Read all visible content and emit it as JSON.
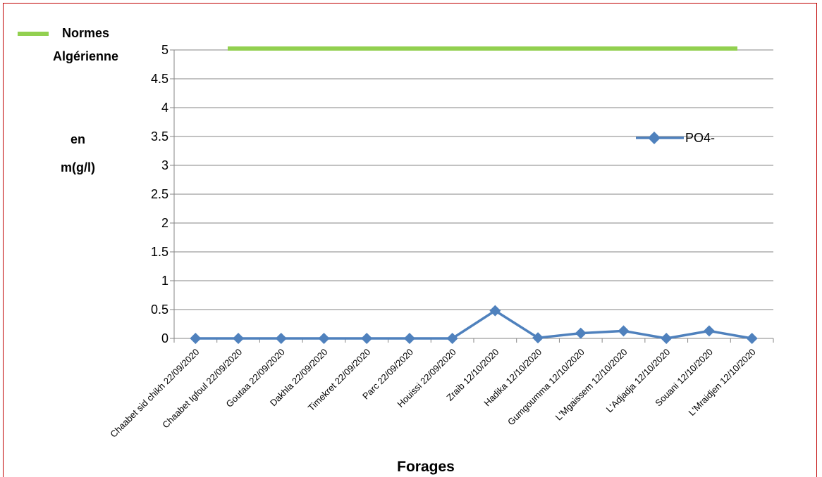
{
  "colors": {
    "series": "#4f81bd",
    "norm": "#92d050",
    "frame": "#c00000",
    "grid": "#868686"
  },
  "chart_data": {
    "type": "line",
    "xlabel": "Forages",
    "ylabel_lines": [
      "en",
      "m(g/l)"
    ],
    "ylim": [
      0,
      5
    ],
    "yticks": [
      "0",
      "0.5",
      "1",
      "1.5",
      "2",
      "2.5",
      "3",
      "3.5",
      "4",
      "4.5",
      "5"
    ],
    "grid": true,
    "legend_position": "right",
    "norm": {
      "label_lines": [
        "Normes",
        "Algérienne"
      ],
      "value": 5
    },
    "categories": [
      "Chaabet sid chikh  22/09/2020",
      "Chaabet Igfoul  22/09/2020",
      "Goutaa 22/09/2020",
      "Dakhla 22/09/2020",
      "Timekret 22/09/2020",
      "Parc 22/09/2020",
      "Houissi 22/09/2020",
      "Zraib 12/10/2020",
      "Hadika 12/10/2020",
      "Gumgoumma 12/10/2020",
      "L'Mgaissem 12/10/2020",
      "L'Adjadja 12/10/2020",
      "Souani 12/10/2020",
      "L'Mraidjen 12/10/2020"
    ],
    "series": [
      {
        "name": "PO4-",
        "values": [
          0,
          0,
          0,
          0,
          0,
          0,
          0,
          0.48,
          0.01,
          0.09,
          0.13,
          0,
          0.13,
          0
        ]
      }
    ]
  }
}
